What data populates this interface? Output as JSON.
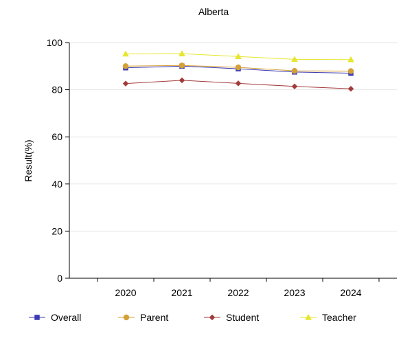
{
  "chart_data": {
    "type": "line",
    "title": "Alberta",
    "xlabel": "",
    "ylabel": "Result(%)",
    "categories": [
      "2020",
      "2021",
      "2022",
      "2023",
      "2024"
    ],
    "ylim": [
      0,
      100
    ],
    "yticks": [
      0,
      20,
      40,
      60,
      80,
      100
    ],
    "grid": true,
    "legend_position": "bottom",
    "series": [
      {
        "name": "Overall",
        "color": "#3b3bb3",
        "marker": "square",
        "values": [
          89.3,
          90.0,
          88.9,
          87.5,
          87.0
        ]
      },
      {
        "name": "Parent",
        "color": "#d4a03a",
        "marker": "circle",
        "values": [
          90.0,
          90.3,
          89.5,
          88.0,
          87.9
        ]
      },
      {
        "name": "Student",
        "color": "#a33b3b",
        "marker": "diamond",
        "values": [
          82.6,
          84.0,
          82.7,
          81.4,
          80.4
        ]
      },
      {
        "name": "Teacher",
        "color": "#e6e62e",
        "marker": "triangle",
        "values": [
          95.2,
          95.3,
          94.1,
          92.9,
          92.8
        ]
      }
    ]
  }
}
